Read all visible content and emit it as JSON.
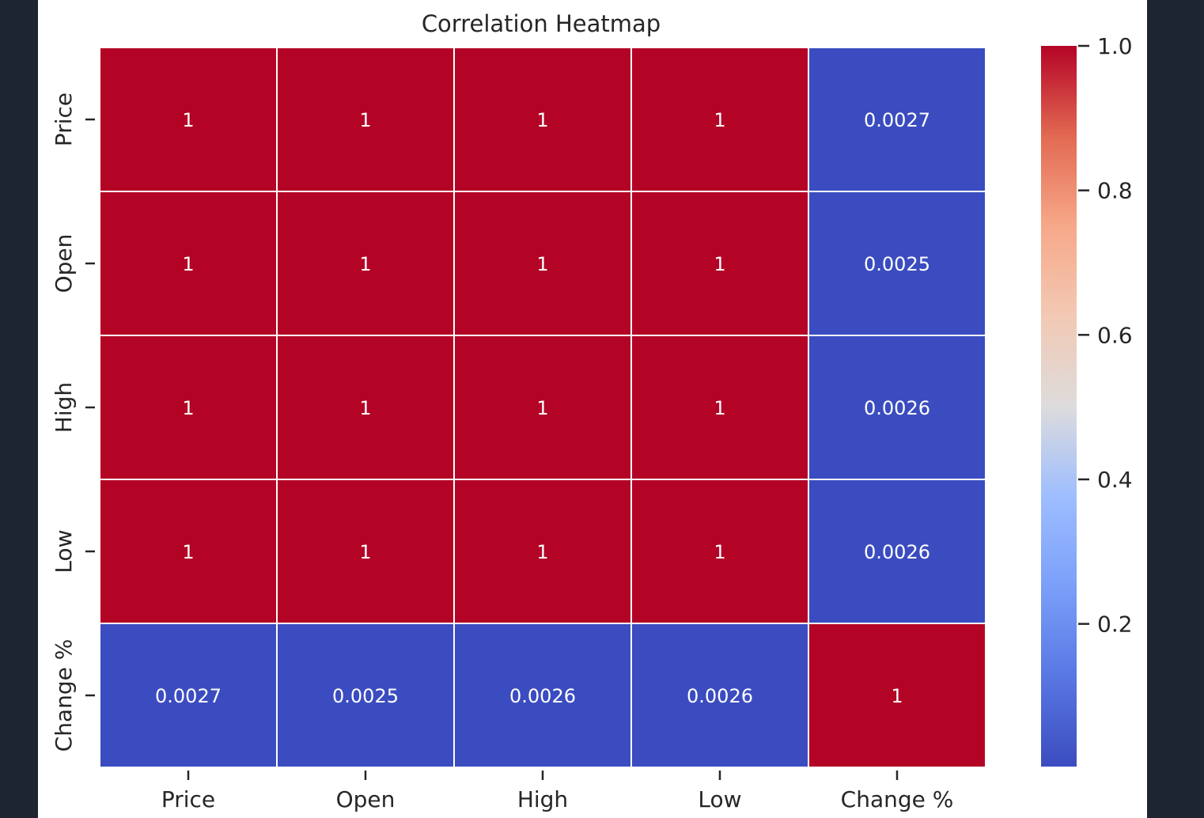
{
  "chart_data": {
    "type": "heatmap",
    "title": "Correlation Heatmap",
    "x_labels": [
      "Price",
      "Open",
      "High",
      "Low",
      "Change %"
    ],
    "y_labels": [
      "Price",
      "Open",
      "High",
      "Low",
      "Change %"
    ],
    "values": [
      [
        1,
        1,
        1,
        1,
        0.0027
      ],
      [
        1,
        1,
        1,
        1,
        0.0025
      ],
      [
        1,
        1,
        1,
        1,
        0.0026
      ],
      [
        1,
        1,
        1,
        1,
        0.0026
      ],
      [
        0.0027,
        0.0025,
        0.0026,
        0.0026,
        1
      ]
    ],
    "annotations": [
      [
        "1",
        "1",
        "1",
        "1",
        "0.0027"
      ],
      [
        "1",
        "1",
        "1",
        "1",
        "0.0025"
      ],
      [
        "1",
        "1",
        "1",
        "1",
        "0.0026"
      ],
      [
        "1",
        "1",
        "1",
        "1",
        "0.0026"
      ],
      [
        "0.0027",
        "0.0025",
        "0.0026",
        "0.0026",
        "1"
      ]
    ],
    "colormap": "coolwarm",
    "colorbar": {
      "range": [
        0.0025,
        1.0
      ],
      "ticks": [
        0.2,
        0.4,
        0.6,
        0.8,
        1.0
      ],
      "tick_labels": [
        "0.2",
        "0.4",
        "0.6",
        "0.8",
        "1.0"
      ],
      "placement": "right"
    },
    "colors": {
      "high": "#b40426",
      "low": "#3b4cc0",
      "cell_border": "#ffffff"
    }
  }
}
